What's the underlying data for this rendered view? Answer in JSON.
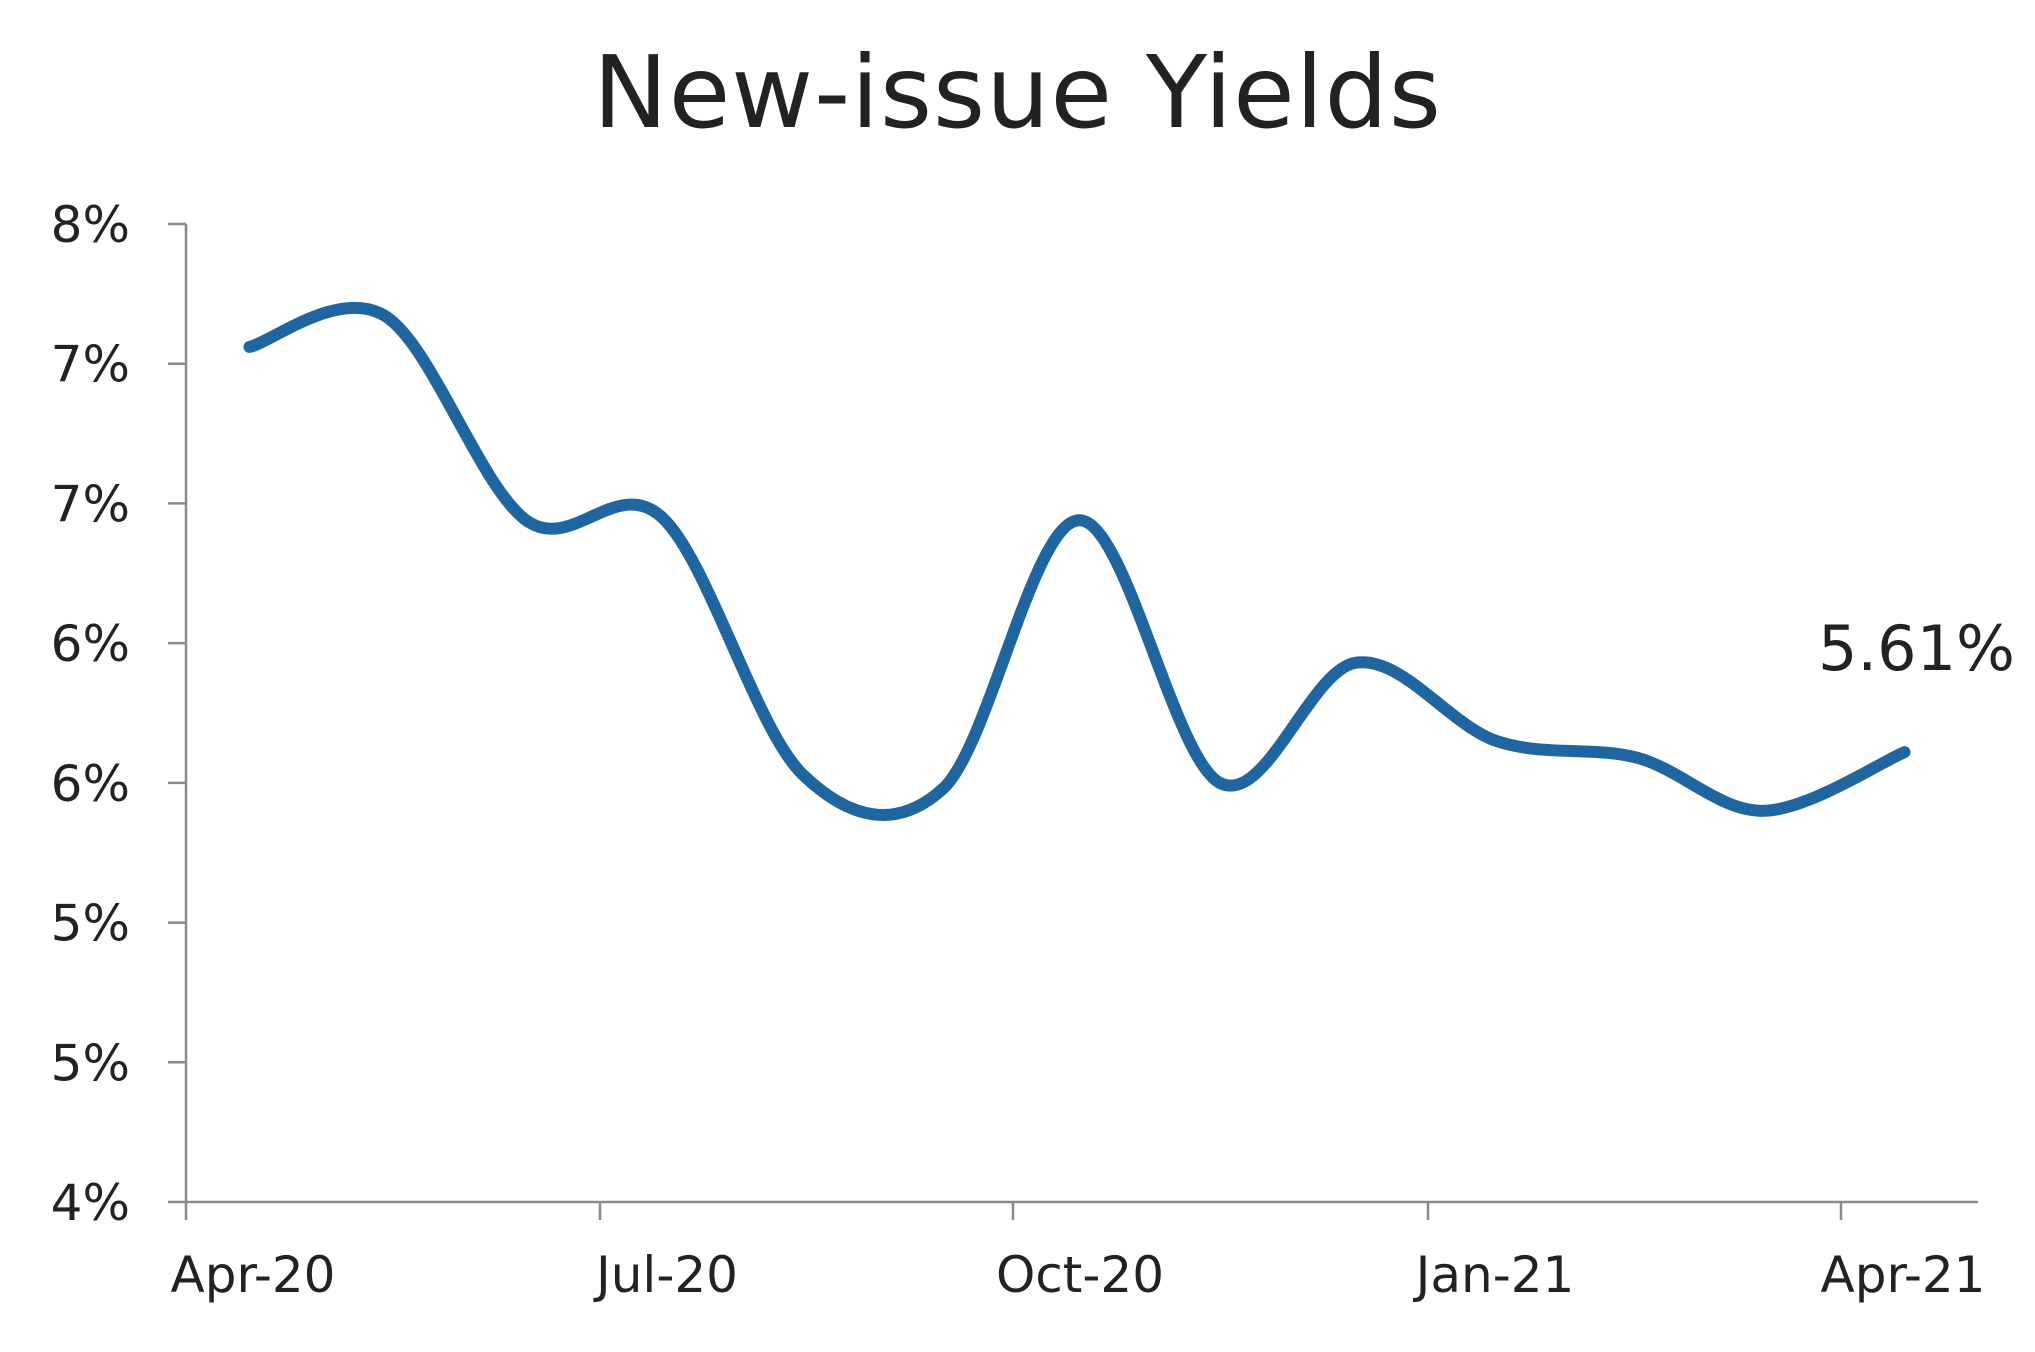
{
  "chart_data": {
    "type": "line",
    "title": "New-issue Yields",
    "xlabel": "",
    "ylabel": "",
    "x_tick_labels": [
      "Apr-20",
      "Jul-20",
      "Oct-20",
      "Jan-21",
      "Apr-21"
    ],
    "y_tick_labels": [
      "4%",
      "5%",
      "5%",
      "6%",
      "6%",
      "7%",
      "7%",
      "8%"
    ],
    "ylim": [
      4.0,
      7.5
    ],
    "grid": false,
    "legend": "none",
    "series": [
      {
        "color": "#1f66a0",
        "x": [
          "2020-04-15",
          "2020-05-15",
          "2020-06-15",
          "2020-07-15",
          "2020-08-15",
          "2020-09-15",
          "2020-10-15",
          "2020-11-15",
          "2020-12-15",
          "2021-01-15",
          "2021-02-15",
          "2021-03-15",
          "2021-04-15"
        ],
        "values": [
          7.06,
          7.17,
          6.44,
          6.45,
          5.53,
          5.48,
          6.44,
          5.5,
          5.93,
          5.65,
          5.59,
          5.4,
          5.61
        ]
      }
    ],
    "annotations": [
      {
        "text": "5.61%",
        "series": 0,
        "point": "last"
      }
    ]
  }
}
